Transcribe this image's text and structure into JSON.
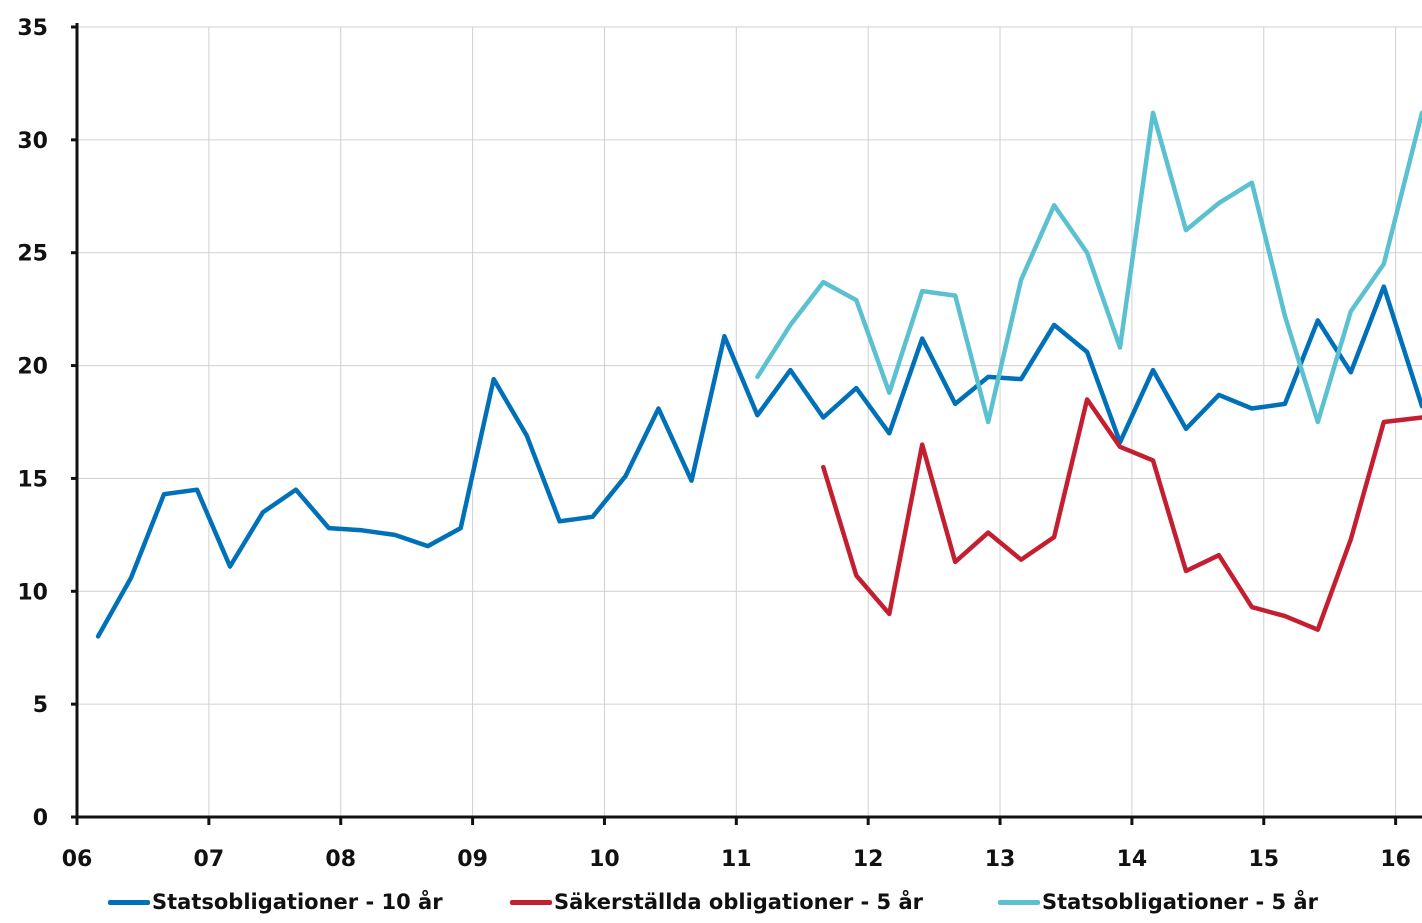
{
  "chart_data": {
    "type": "line",
    "title": "",
    "xlabel": "",
    "ylabel": "",
    "ylim": [
      0,
      35
    ],
    "yticks": [
      0,
      5,
      10,
      15,
      20,
      25,
      30,
      35
    ],
    "xlim": [
      2006.0,
      2016.2
    ],
    "xticks": [
      {
        "value": 2006,
        "label": "06"
      },
      {
        "value": 2007,
        "label": "07"
      },
      {
        "value": 2008,
        "label": "08"
      },
      {
        "value": 2009,
        "label": "09"
      },
      {
        "value": 2010,
        "label": "10"
      },
      {
        "value": 2011,
        "label": "11"
      },
      {
        "value": 2012,
        "label": "12"
      },
      {
        "value": 2013,
        "label": "13"
      },
      {
        "value": 2014,
        "label": "14"
      },
      {
        "value": 2015,
        "label": "15"
      },
      {
        "value": 2016,
        "label": "16"
      }
    ],
    "grid": true,
    "legend_position": "bottom",
    "series": [
      {
        "name": "Statsobligationer - 10 år",
        "color": "#0070b8",
        "x": [
          2006.16,
          2006.41,
          2006.66,
          2006.91,
          2007.16,
          2007.41,
          2007.66,
          2007.91,
          2008.16,
          2008.41,
          2008.66,
          2008.91,
          2009.16,
          2009.41,
          2009.66,
          2009.91,
          2010.16,
          2010.41,
          2010.66,
          2010.91,
          2011.16,
          2011.41,
          2011.66,
          2011.91,
          2012.16,
          2012.41,
          2012.66,
          2012.91,
          2013.16,
          2013.41,
          2013.66,
          2013.91,
          2014.16,
          2014.41,
          2014.66,
          2014.91,
          2015.16,
          2015.41,
          2015.66,
          2015.91,
          2016.2
        ],
        "values": [
          8.0,
          10.6,
          14.3,
          14.5,
          11.1,
          13.5,
          14.5,
          12.8,
          12.7,
          12.5,
          12.0,
          12.8,
          19.4,
          16.9,
          13.1,
          13.3,
          15.1,
          18.1,
          14.9,
          21.3,
          17.8,
          19.8,
          17.7,
          19.0,
          17.0,
          21.2,
          18.3,
          19.5,
          19.4,
          21.8,
          20.6,
          16.6,
          19.8,
          17.2,
          18.7,
          18.1,
          18.3,
          22.0,
          19.7,
          23.5,
          18.2
        ]
      },
      {
        "name": "Säkerställda obligationer - 5 år",
        "color": "#c41f30",
        "x": [
          2011.66,
          2011.91,
          2012.16,
          2012.41,
          2012.66,
          2012.91,
          2013.16,
          2013.41,
          2013.66,
          2013.91,
          2014.16,
          2014.41,
          2014.66,
          2014.91,
          2015.16,
          2015.41,
          2015.66,
          2015.91,
          2016.2
        ],
        "values": [
          15.5,
          10.7,
          9.0,
          16.5,
          11.3,
          12.6,
          11.4,
          12.4,
          18.5,
          16.4,
          15.8,
          10.9,
          11.6,
          9.3,
          8.9,
          8.3,
          12.3,
          17.5,
          17.7
        ]
      },
      {
        "name": "Statsobligationer - 5 år",
        "color": "#5bc1d1",
        "x": [
          2011.16,
          2011.41,
          2011.66,
          2011.91,
          2012.16,
          2012.41,
          2012.66,
          2012.91,
          2013.16,
          2013.41,
          2013.66,
          2013.91,
          2014.16,
          2014.41,
          2014.66,
          2014.91,
          2015.16,
          2015.41,
          2015.66,
          2015.91,
          2016.2
        ],
        "values": [
          19.5,
          21.8,
          23.7,
          22.9,
          18.8,
          23.3,
          23.1,
          17.5,
          23.8,
          27.1,
          25.0,
          20.8,
          31.2,
          26.0,
          27.2,
          28.1,
          22.2,
          17.5,
          22.4,
          24.5,
          31.2
        ]
      }
    ]
  }
}
